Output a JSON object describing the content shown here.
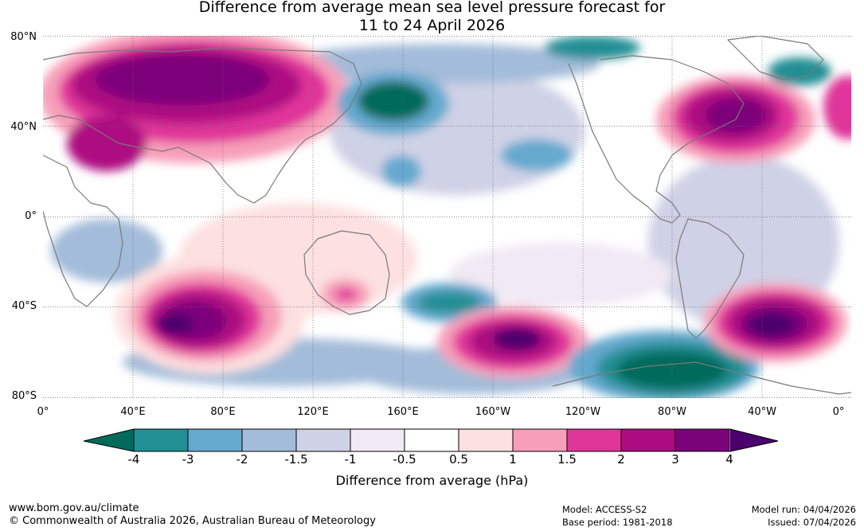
{
  "title": {
    "line1": "Difference from average mean sea level pressure forecast for",
    "line2": "11 to 24 April 2026"
  },
  "map": {
    "lat_labels": [
      "80°N",
      "40°N",
      "0°",
      "40°S",
      "80°S"
    ],
    "lon_labels": [
      "0°",
      "40°E",
      "80°E",
      "120°E",
      "160°E",
      "160°W",
      "120°W",
      "80°W",
      "40°W",
      "0°"
    ]
  },
  "colorbar": {
    "ticks": [
      "-4",
      "-3",
      "-2",
      "-1.5",
      "-1",
      "-0.5",
      "0.5",
      "1",
      "1.5",
      "2",
      "3",
      "4"
    ],
    "label": "Difference from average (hPa)",
    "colors": {
      "below": "#006b5b",
      "bins": [
        "#218f94",
        "#65a9cf",
        "#a3bcd9",
        "#cfd2e6",
        "#f1e9f4",
        "#ffffff",
        "#fde0e0",
        "#f79fb9",
        "#e0369a",
        "#ad0b81",
        "#7b037a"
      ],
      "above": "#4b006d"
    }
  },
  "footer": {
    "website": "www.bom.gov.au/climate",
    "copyright": "© Commonwealth of Australia 2026, Australian Bureau of Meteorology",
    "model": "Model: ACCESS-S2",
    "base_period": "Base period: 1981-2018",
    "model_run": "Model run: 04/04/2026",
    "issued": "Issued: 07/04/2026"
  }
}
